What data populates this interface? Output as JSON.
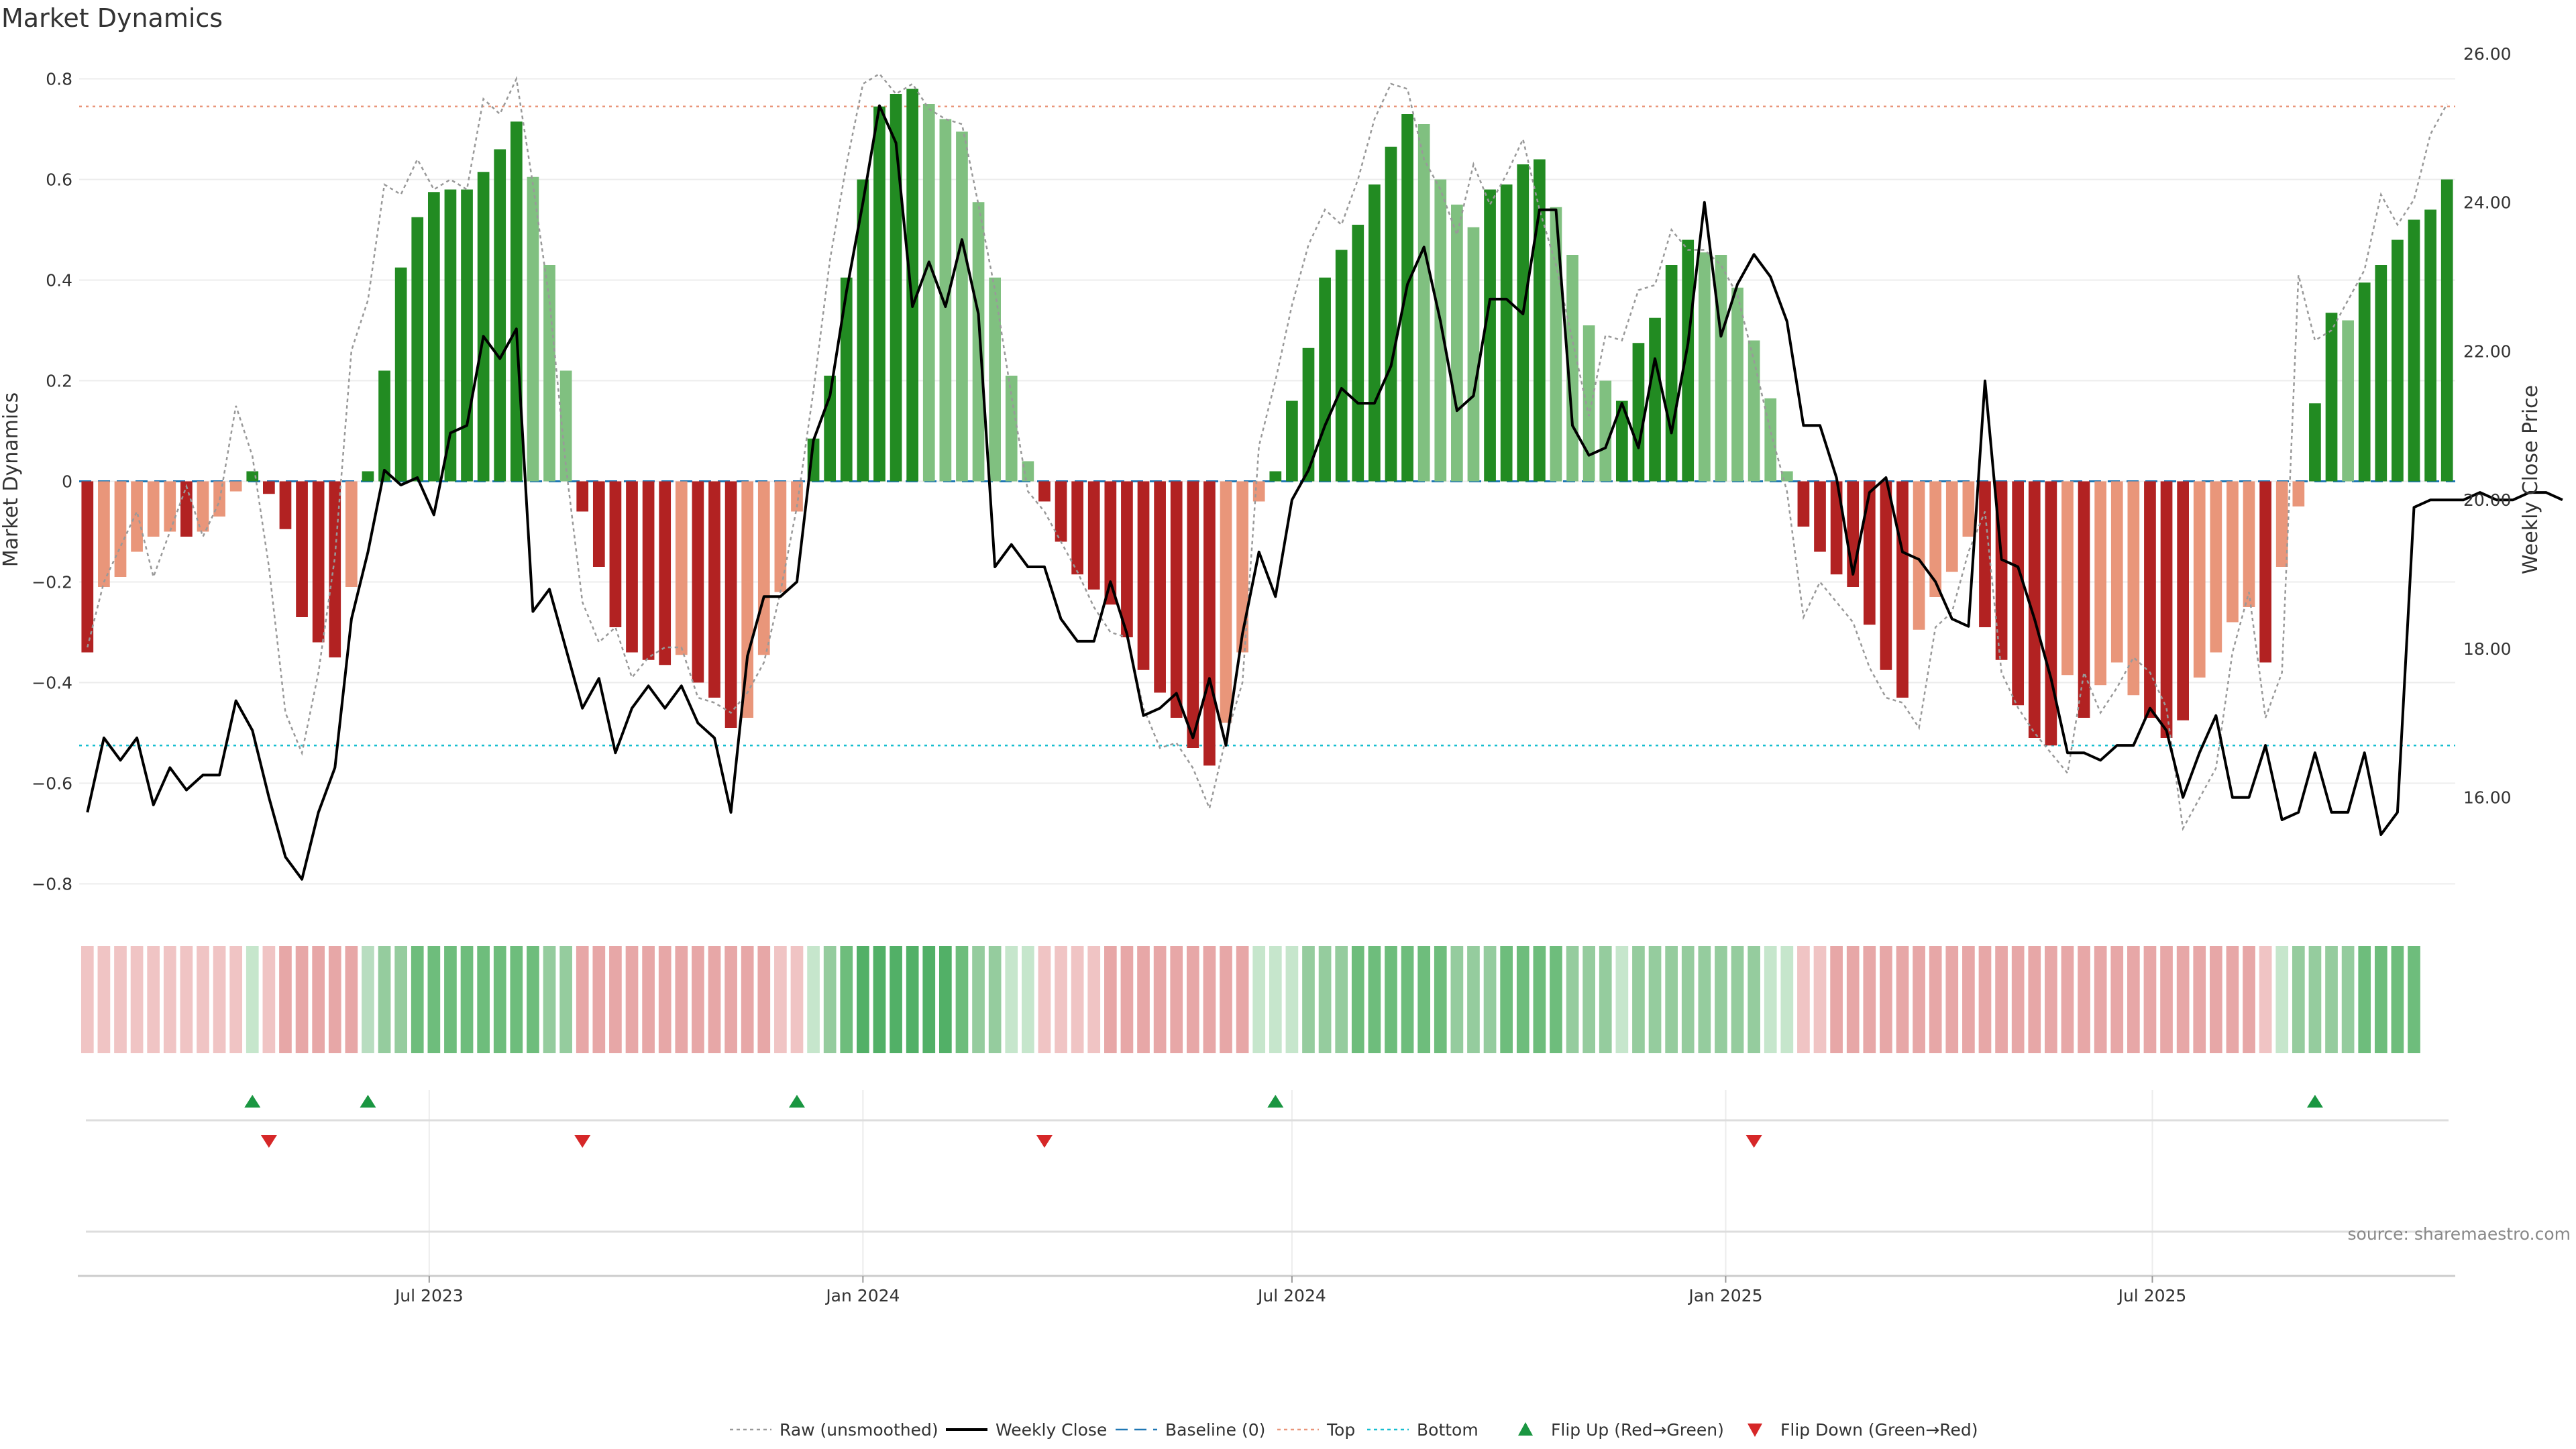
{
  "chart_data": {
    "type": "bar",
    "title": "Market Dynamics",
    "ylabel": "Market Dynamics",
    "y2label": "Weekly Close Price",
    "ylim": [
      -0.85,
      0.85
    ],
    "y2lim": [
      14.5,
      26.0
    ],
    "yticks": [
      "0.8",
      "0.6",
      "0.4",
      "0.2",
      "0",
      "−0.2",
      "−0.4",
      "−0.6",
      "−0.8"
    ],
    "yticks_values": [
      0.8,
      0.6,
      0.4,
      0.2,
      0,
      -0.2,
      -0.4,
      -0.6,
      -0.8
    ],
    "y2ticks": [
      "26.00",
      "24.00",
      "22.00",
      "20.00",
      "18.00",
      "16.00"
    ],
    "y2ticks_values": [
      26,
      24,
      22,
      20,
      18,
      16
    ],
    "x_start": "2023-02-06",
    "x_interval": "weekly",
    "x_end": "2025-10-27",
    "xticks": [
      {
        "label": "Jul 2023",
        "date": "2023-07-01"
      },
      {
        "label": "Jan 2024",
        "date": "2024-01-01"
      },
      {
        "label": "Jul 2024",
        "date": "2024-07-01"
      },
      {
        "label": "Jan 2025",
        "date": "2025-01-01"
      },
      {
        "label": "Jul 2025",
        "date": "2025-07-01"
      }
    ],
    "top_level": 0.745,
    "bottom_level": -0.525,
    "baseline": 0,
    "grid": true,
    "values": [
      -0.34,
      -0.21,
      -0.19,
      -0.14,
      -0.11,
      -0.1,
      -0.11,
      -0.1,
      -0.07,
      -0.02,
      0.02,
      -0.025,
      -0.095,
      -0.27,
      -0.32,
      -0.35,
      -0.21,
      0.02,
      0.22,
      0.425,
      0.525,
      0.575,
      0.58,
      0.58,
      0.615,
      0.66,
      0.715,
      0.605,
      0.43,
      0.22,
      -0.06,
      -0.17,
      -0.29,
      -0.34,
      -0.355,
      -0.365,
      -0.345,
      -0.4,
      -0.43,
      -0.49,
      -0.47,
      -0.345,
      -0.22,
      -0.06,
      0.085,
      0.21,
      0.405,
      0.6,
      0.745,
      0.77,
      0.78,
      0.75,
      0.72,
      0.695,
      0.555,
      0.405,
      0.21,
      0.04,
      -0.04,
      -0.12,
      -0.185,
      -0.215,
      -0.245,
      -0.31,
      -0.375,
      -0.42,
      -0.47,
      -0.53,
      -0.565,
      -0.48,
      -0.34,
      -0.04,
      0.02,
      0.16,
      0.265,
      0.405,
      0.46,
      0.51,
      0.59,
      0.665,
      0.73,
      0.71,
      0.6,
      0.55,
      0.505,
      0.58,
      0.59,
      0.63,
      0.64,
      0.545,
      0.45,
      0.31,
      0.2,
      0.16,
      0.275,
      0.325,
      0.43,
      0.48,
      0.455,
      0.45,
      0.385,
      0.28,
      0.165,
      0.02,
      -0.09,
      -0.14,
      -0.185,
      -0.21,
      -0.285,
      -0.375,
      -0.43,
      -0.295,
      -0.23,
      -0.18,
      -0.11,
      -0.29,
      -0.355,
      -0.445,
      -0.51,
      -0.525,
      -0.385,
      -0.47,
      -0.405,
      -0.36,
      -0.425,
      -0.47,
      -0.51,
      -0.475,
      -0.39,
      -0.34,
      -0.28,
      -0.25,
      -0.36,
      -0.17,
      -0.05,
      0.155,
      0.335,
      0.32,
      0.395,
      0.43,
      0.48,
      0.52,
      0.54,
      0.6
    ],
    "bar_colors": [
      "#b22222",
      "#e9967a",
      "#e9967a",
      "#e9967a",
      "#e9967a",
      "#e9967a",
      "#b22222",
      "#e9967a",
      "#e9967a",
      "#e9967a",
      "#228b22",
      "#b22222",
      "#b22222",
      "#b22222",
      "#b22222",
      "#b22222",
      "#e9967a",
      "#228b22",
      "#228b22",
      "#228b22",
      "#228b22",
      "#228b22",
      "#228b22",
      "#228b22",
      "#228b22",
      "#228b22",
      "#228b22",
      "#80c080",
      "#80c080",
      "#80c080",
      "#b22222",
      "#b22222",
      "#b22222",
      "#b22222",
      "#b22222",
      "#b22222",
      "#e9967a",
      "#b22222",
      "#b22222",
      "#b22222",
      "#e9967a",
      "#e9967a",
      "#e9967a",
      "#e9967a",
      "#228b22",
      "#228b22",
      "#228b22",
      "#228b22",
      "#228b22",
      "#228b22",
      "#228b22",
      "#80c080",
      "#80c080",
      "#80c080",
      "#80c080",
      "#80c080",
      "#80c080",
      "#80c080",
      "#b22222",
      "#b22222",
      "#b22222",
      "#b22222",
      "#b22222",
      "#b22222",
      "#b22222",
      "#b22222",
      "#b22222",
      "#b22222",
      "#b22222",
      "#e9967a",
      "#e9967a",
      "#e9967a",
      "#228b22",
      "#228b22",
      "#228b22",
      "#228b22",
      "#228b22",
      "#228b22",
      "#228b22",
      "#228b22",
      "#228b22",
      "#80c080",
      "#80c080",
      "#80c080",
      "#80c080",
      "#228b22",
      "#228b22",
      "#228b22",
      "#228b22",
      "#80c080",
      "#80c080",
      "#80c080",
      "#80c080",
      "#228b22",
      "#228b22",
      "#228b22",
      "#228b22",
      "#228b22",
      "#80c080",
      "#80c080",
      "#80c080",
      "#80c080",
      "#80c080",
      "#80c080",
      "#b22222",
      "#b22222",
      "#b22222",
      "#b22222",
      "#b22222",
      "#b22222",
      "#b22222",
      "#e9967a",
      "#e9967a",
      "#e9967a",
      "#e9967a",
      "#b22222",
      "#b22222",
      "#b22222",
      "#b22222",
      "#b22222",
      "#e9967a",
      "#b22222",
      "#e9967a",
      "#e9967a",
      "#e9967a",
      "#b22222",
      "#b22222",
      "#b22222",
      "#e9967a",
      "#e9967a",
      "#e9967a",
      "#e9967a",
      "#b22222",
      "#e9967a",
      "#e9967a",
      "#228b22",
      "#228b22",
      "#80c080",
      "#228b22",
      "#228b22",
      "#228b22",
      "#228b22",
      "#228b22",
      "#228b22"
    ],
    "strip_colors": [
      "#f0c4c4",
      "#f0c4c4",
      "#f0c4c4",
      "#f0c4c4",
      "#f0c4c4",
      "#f0c4c4",
      "#f0c4c4",
      "#f0c4c4",
      "#f0c4c4",
      "#f0c4c4",
      "#c6e6cc",
      "#f0c4c4",
      "#e7a7a7",
      "#e7a7a7",
      "#e7a7a7",
      "#e7a7a7",
      "#e7a7a7",
      "#b8ddc0",
      "#95cc9e",
      "#95cc9e",
      "#6ebd7c",
      "#6ebd7c",
      "#6ebd7c",
      "#6ebd7c",
      "#6ebd7c",
      "#6ebd7c",
      "#6ebd7c",
      "#6ebd7c",
      "#95cc9e",
      "#95cc9e",
      "#e7a7a7",
      "#e7a7a7",
      "#e7a7a7",
      "#e7a7a7",
      "#e7a7a7",
      "#e7a7a7",
      "#e7a7a7",
      "#e7a7a7",
      "#e7a7a7",
      "#e7a7a7",
      "#e7a7a7",
      "#e7a7a7",
      "#f0c4c4",
      "#f0c4c4",
      "#c6e6cc",
      "#95cc9e",
      "#6ebd7c",
      "#52b067",
      "#52b067",
      "#52b067",
      "#52b067",
      "#52b067",
      "#52b067",
      "#6ebd7c",
      "#95cc9e",
      "#95cc9e",
      "#c6e6cc",
      "#c6e6cc",
      "#f0c4c4",
      "#f0c4c4",
      "#f0c4c4",
      "#f0c4c4",
      "#e7a7a7",
      "#e7a7a7",
      "#e7a7a7",
      "#e7a7a7",
      "#e7a7a7",
      "#e7a7a7",
      "#e7a7a7",
      "#e7a7a7",
      "#e7a7a7",
      "#c6e6cc",
      "#c6e6cc",
      "#c6e6cc",
      "#95cc9e",
      "#95cc9e",
      "#95cc9e",
      "#6ebd7c",
      "#6ebd7c",
      "#6ebd7c",
      "#6ebd7c",
      "#6ebd7c",
      "#6ebd7c",
      "#95cc9e",
      "#95cc9e",
      "#95cc9e",
      "#6ebd7c",
      "#6ebd7c",
      "#6ebd7c",
      "#6ebd7c",
      "#95cc9e",
      "#95cc9e",
      "#95cc9e",
      "#c6e6cc",
      "#95cc9e",
      "#95cc9e",
      "#95cc9e",
      "#95cc9e",
      "#95cc9e",
      "#95cc9e",
      "#95cc9e",
      "#95cc9e",
      "#c6e6cc",
      "#c6e6cc",
      "#f0c4c4",
      "#f0c4c4",
      "#e7a7a7",
      "#e7a7a7",
      "#e7a7a7",
      "#e7a7a7",
      "#e7a7a7",
      "#e7a7a7",
      "#e7a7a7",
      "#e7a7a7",
      "#e7a7a7",
      "#e7a7a7",
      "#e7a7a7",
      "#e7a7a7",
      "#e7a7a7",
      "#e7a7a7",
      "#e7a7a7",
      "#e7a7a7",
      "#e7a7a7",
      "#e7a7a7",
      "#e7a7a7",
      "#e7a7a7",
      "#e7a7a7",
      "#e7a7a7",
      "#e7a7a7",
      "#e7a7a7",
      "#e7a7a7",
      "#e7a7a7",
      "#f0c4c4",
      "#c6e6cc",
      "#95cc9e",
      "#95cc9e",
      "#95cc9e",
      "#95cc9e",
      "#6ebd7c",
      "#6ebd7c",
      "#6ebd7c",
      "#6ebd7c"
    ],
    "raw_values": [
      -0.33,
      -0.2,
      -0.13,
      -0.06,
      -0.19,
      -0.1,
      -0.01,
      -0.11,
      -0.04,
      0.15,
      0.05,
      -0.17,
      -0.46,
      -0.54,
      -0.38,
      -0.15,
      0.26,
      0.36,
      0.59,
      0.57,
      0.64,
      0.58,
      0.6,
      0.58,
      0.76,
      0.73,
      0.8,
      0.59,
      0.36,
      0.03,
      -0.24,
      -0.32,
      -0.29,
      -0.39,
      -0.35,
      -0.33,
      -0.33,
      -0.43,
      -0.44,
      -0.46,
      -0.42,
      -0.36,
      -0.22,
      -0.05,
      0.18,
      0.44,
      0.63,
      0.79,
      0.81,
      0.77,
      0.79,
      0.74,
      0.72,
      0.71,
      0.55,
      0.38,
      0.17,
      -0.02,
      -0.06,
      -0.12,
      -0.18,
      -0.25,
      -0.3,
      -0.31,
      -0.45,
      -0.53,
      -0.52,
      -0.57,
      -0.65,
      -0.51,
      -0.4,
      0.07,
      0.2,
      0.35,
      0.47,
      0.54,
      0.51,
      0.6,
      0.72,
      0.79,
      0.78,
      0.64,
      0.58,
      0.49,
      0.63,
      0.55,
      0.61,
      0.68,
      0.54,
      0.43,
      0.28,
      0.13,
      0.29,
      0.28,
      0.38,
      0.39,
      0.5,
      0.46,
      0.46,
      0.43,
      0.37,
      0.24,
      0.1,
      -0.02,
      -0.27,
      -0.2,
      -0.24,
      -0.28,
      -0.37,
      -0.43,
      -0.44,
      -0.49,
      -0.29,
      -0.26,
      -0.14,
      -0.06,
      -0.38,
      -0.45,
      -0.5,
      -0.54,
      -0.58,
      -0.38,
      -0.46,
      -0.41,
      -0.35,
      -0.38,
      -0.45,
      -0.69,
      -0.63,
      -0.57,
      -0.34,
      -0.22,
      -0.47,
      -0.38,
      0.41,
      0.28,
      0.3,
      0.36,
      0.42,
      0.57,
      0.51,
      0.56,
      0.69,
      0.75
    ],
    "close_values": [
      15.8,
      16.8,
      16.5,
      16.8,
      15.9,
      16.4,
      16.1,
      16.3,
      16.3,
      17.3,
      16.9,
      16.0,
      15.2,
      14.9,
      15.8,
      16.4,
      18.4,
      19.3,
      20.4,
      20.2,
      20.3,
      19.8,
      20.9,
      21.0,
      22.2,
      21.9,
      22.3,
      18.5,
      18.8,
      18.0,
      17.2,
      17.6,
      16.6,
      17.2,
      17.5,
      17.2,
      17.5,
      17.0,
      16.8,
      15.8,
      17.9,
      18.7,
      18.7,
      18.9,
      20.8,
      21.4,
      22.8,
      24.0,
      25.3,
      24.8,
      22.6,
      23.2,
      22.6,
      23.5,
      22.5,
      19.1,
      19.4,
      19.1,
      19.1,
      18.4,
      18.1,
      18.1,
      18.9,
      18.2,
      17.1,
      17.2,
      17.4,
      16.8,
      17.6,
      16.7,
      18.2,
      19.3,
      18.7,
      20.0,
      20.4,
      21.0,
      21.5,
      21.3,
      21.3,
      21.8,
      22.9,
      23.4,
      22.4,
      21.2,
      21.4,
      22.7,
      22.7,
      22.5,
      23.9,
      23.9,
      21.0,
      20.6,
      20.7,
      21.3,
      20.7,
      21.9,
      20.9,
      22.1,
      24.0,
      22.2,
      22.9,
      23.3,
      23.0,
      22.4,
      21.0,
      21.0,
      20.3,
      19.0,
      20.1,
      20.3,
      19.3,
      19.2,
      18.9,
      18.4,
      18.3,
      21.6,
      19.2,
      19.1,
      18.4,
      17.6,
      16.6,
      16.6,
      16.5,
      16.7,
      16.7,
      17.2,
      16.9,
      16.0,
      16.6,
      17.1,
      16.0,
      16.0,
      16.7,
      15.7,
      15.8,
      16.6,
      15.8,
      15.8,
      16.6,
      15.5,
      15.8,
      19.9,
      20.0,
      20.0,
      20.0,
      20.1,
      20.0,
      20.0,
      20.1,
      20.1,
      20.0
    ],
    "flip_up_dates": [
      "2023-04-17",
      "2023-06-05",
      "2023-12-04",
      "2024-06-24",
      "2025-09-08"
    ],
    "flip_down_dates": [
      "2023-04-24",
      "2023-09-04",
      "2024-03-18",
      "2025-01-13"
    ],
    "legend": [
      {
        "label": "Raw (unsmoothed)",
        "style": "dotted-line",
        "color": "#999999"
      },
      {
        "label": "Weekly Close",
        "style": "solid-line",
        "color": "#000000"
      },
      {
        "label": "Baseline (0)",
        "style": "dashed-line",
        "color": "#1f77b4"
      },
      {
        "label": "Top",
        "style": "dotted-line",
        "color": "#e9967a"
      },
      {
        "label": "Bottom",
        "style": "dotted-line",
        "color": "#17becf"
      },
      {
        "label": "Flip Up (Red→Green)",
        "style": "triangle-up",
        "color": "#1a9641"
      },
      {
        "label": "Flip Down (Green→Red)",
        "style": "triangle-down",
        "color": "#d62728"
      }
    ],
    "legend_position": "bottom-center",
    "source": "source: sharemaestro.com"
  },
  "colors": {
    "green_strong": "#228b22",
    "green_light": "#80c080",
    "red_strong": "#b22222",
    "red_light": "#e9967a",
    "flip_up": "#1a9641",
    "flip_down": "#d62728"
  }
}
